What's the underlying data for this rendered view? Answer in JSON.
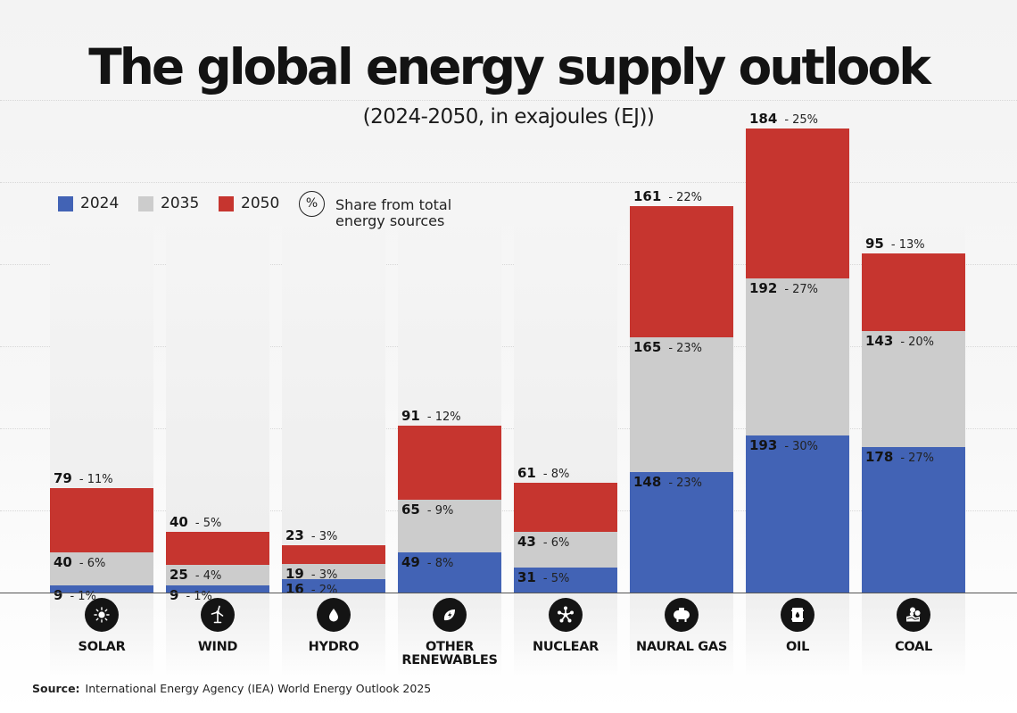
{
  "chart_data": {
    "type": "bar",
    "stacked": true,
    "title": "The global energy supply outlook",
    "subtitle": "(2024-2050, in exajoules (EJ))",
    "xlabel": "",
    "ylabel": "",
    "ylim": [
      0,
      570
    ],
    "grid": true,
    "legend_position": "top-left",
    "categories": [
      "SOLAR",
      "WIND",
      "HYDRO",
      "OTHER RENEWABLES",
      "NUCLEAR",
      "NAURAL GAS",
      "OIL",
      "COAL"
    ],
    "series": [
      {
        "name": "2024",
        "color": "#4263b5",
        "values": [
          9,
          9,
          16,
          49,
          31,
          148,
          193,
          178
        ],
        "shares": [
          "1%",
          "1%",
          "2%",
          "8%",
          "5%",
          "23%",
          "30%",
          "27%"
        ]
      },
      {
        "name": "2035",
        "color": "#cccccc",
        "values": [
          40,
          25,
          19,
          65,
          43,
          165,
          192,
          143
        ],
        "shares": [
          "6%",
          "4%",
          "3%",
          "9%",
          "6%",
          "23%",
          "27%",
          "20%"
        ]
      },
      {
        "name": "2050",
        "color": "#c6352f",
        "values": [
          79,
          40,
          23,
          91,
          61,
          161,
          184,
          95
        ],
        "shares": [
          "11%",
          "5%",
          "3%",
          "12%",
          "8%",
          "22%",
          "25%",
          "13%"
        ]
      }
    ],
    "share_legend": "Share from total energy sources",
    "share_legend_symbol": "%"
  },
  "categories_display": [
    {
      "line1": "SOLAR",
      "line2": "",
      "icon": "sun-icon"
    },
    {
      "line1": "WIND",
      "line2": "",
      "icon": "wind-turbine-icon"
    },
    {
      "line1": "HYDRO",
      "line2": "",
      "icon": "water-drop-icon"
    },
    {
      "line1": "OTHER",
      "line2": "RENEWABLES",
      "icon": "leaf-bolt-icon"
    },
    {
      "line1": "NUCLEAR",
      "line2": "",
      "icon": "atom-icon"
    },
    {
      "line1": "NAURAL GAS",
      "line2": "",
      "icon": "gas-tank-icon"
    },
    {
      "line1": "OIL",
      "line2": "",
      "icon": "oil-barrel-icon"
    },
    {
      "line1": "COAL",
      "line2": "",
      "icon": "coal-icon"
    }
  ],
  "legend": {
    "items": [
      {
        "label": "2024",
        "color": "#4263b5"
      },
      {
        "label": "2035",
        "color": "#cccccc"
      },
      {
        "label": "2050",
        "color": "#c6352f"
      }
    ],
    "share_symbol": "%",
    "share_line1": "Share from total",
    "share_line2": "energy sources"
  },
  "source": {
    "label": "Source:",
    "text": "International Energy Agency (IEA) World Energy Outlook 2025"
  }
}
